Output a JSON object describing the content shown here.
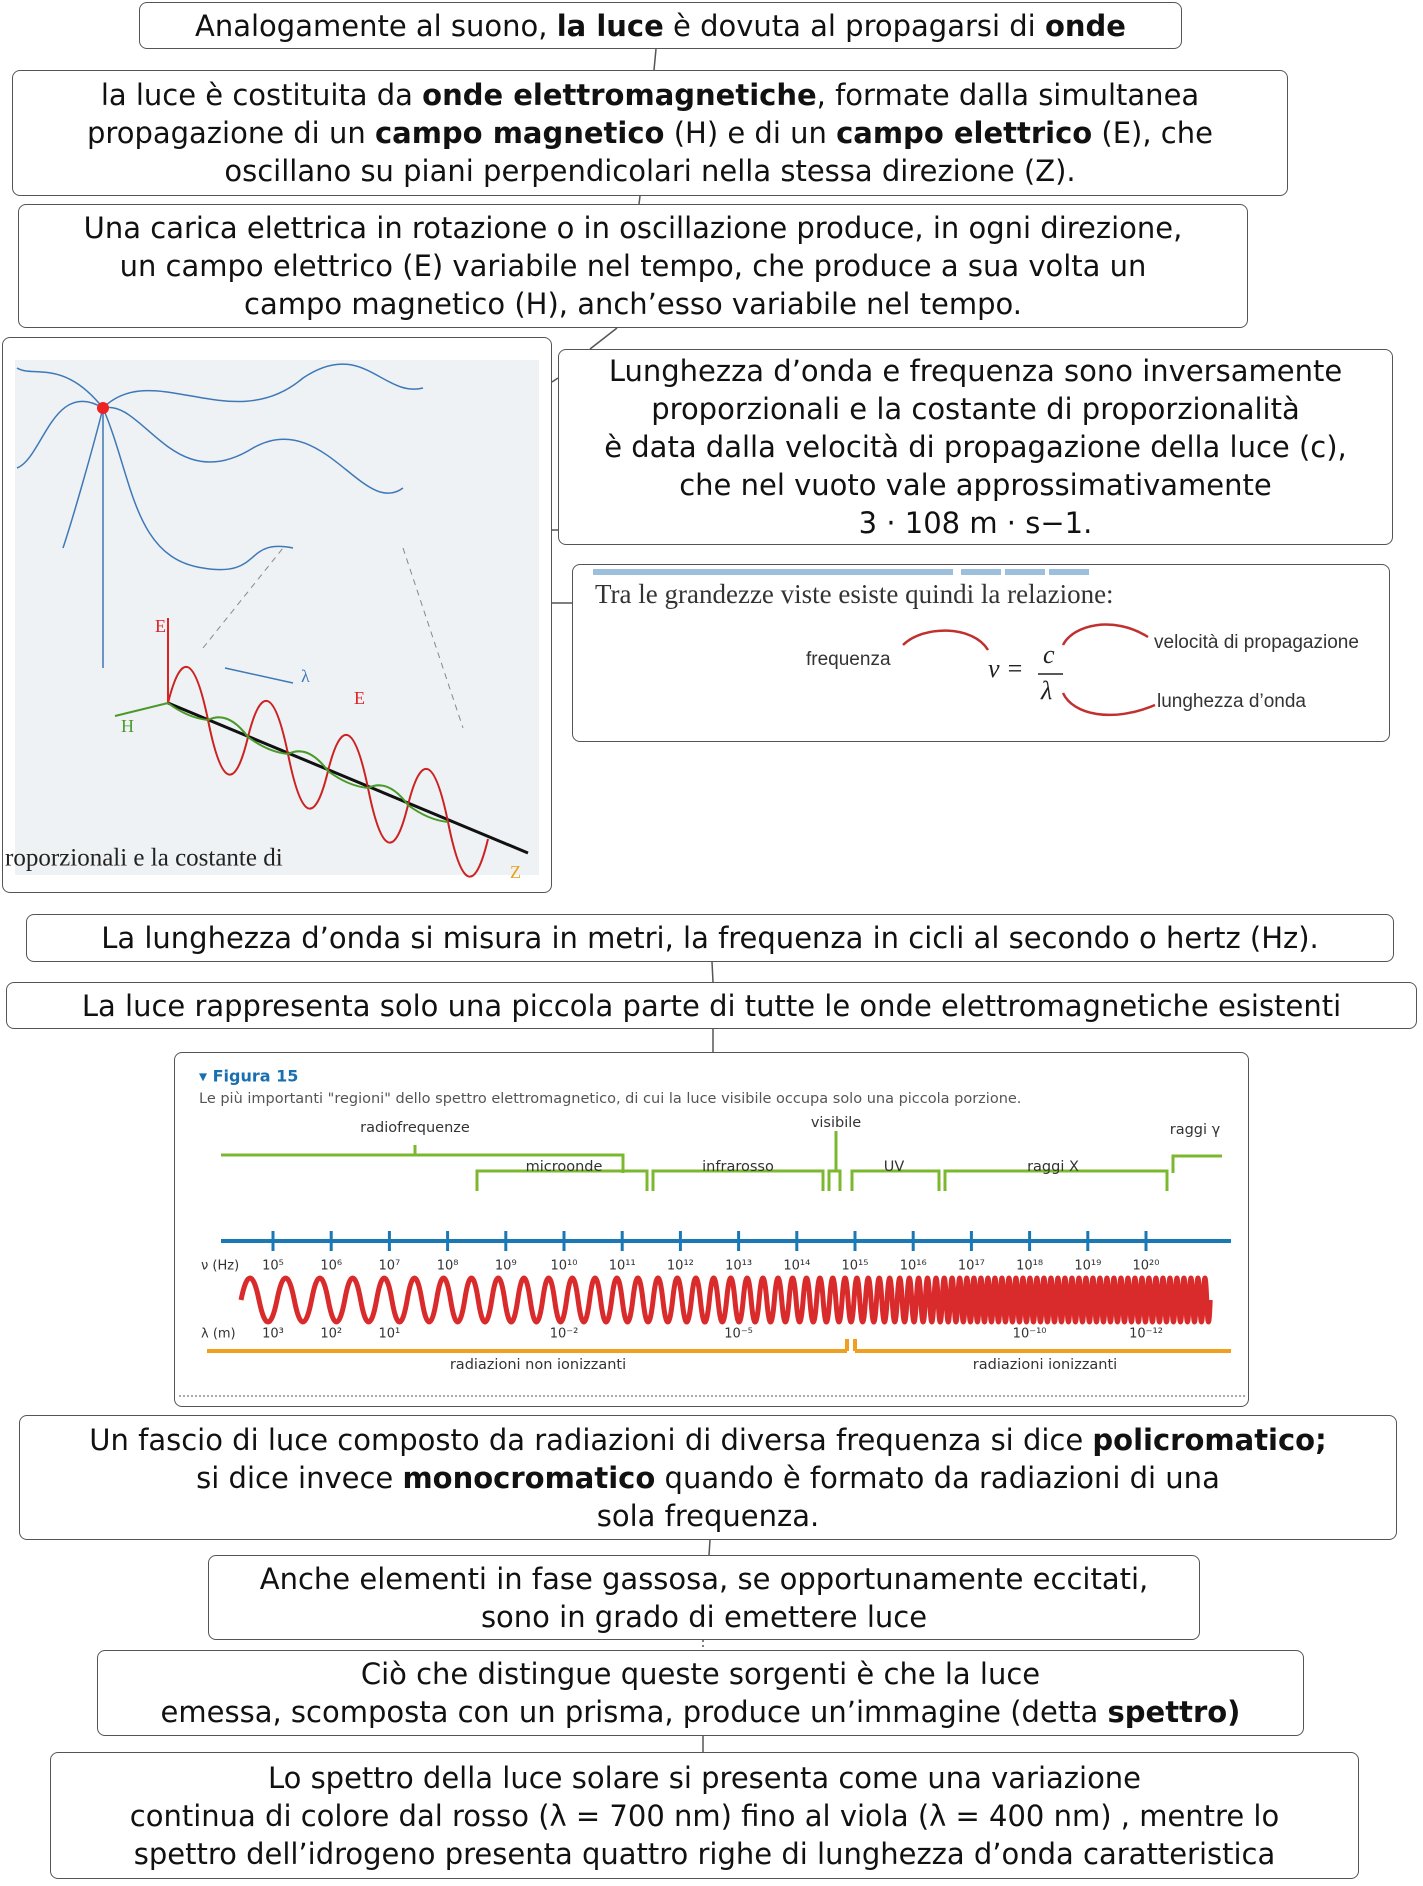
{
  "nodes": [
    {
      "lines": [
        [
          "Analogamente al suono, ",
          {
            "text": "la luce",
            "bold": true
          },
          " è dovuta al propagarsi di ",
          {
            "text": "onde",
            "bold": true
          }
        ]
      ]
    },
    {
      "lines": [
        [
          "la luce è costituita da ",
          {
            "text": "onde elettromagnetiche",
            "bold": true
          },
          ", formate dalla simultanea"
        ],
        [
          "propagazione di un ",
          {
            "text": "campo magnetico",
            "bold": true
          },
          " (H) e di un ",
          {
            "text": "campo elettrico",
            "bold": true
          },
          " (E), che"
        ],
        [
          "oscillano su piani perpendicolari nella stessa direzione (Z)."
        ]
      ]
    },
    {
      "lines": [
        [
          "Una carica elettrica in rotazione o in oscillazione produce, in ogni direzione,"
        ],
        [
          "un campo elettrico (E) variabile nel tempo, che produce a sua volta un"
        ],
        [
          "campo magnetico (H), anch’esso variabile nel tempo."
        ]
      ]
    },
    {
      "lines": [
        [
          "Lunghezza d’onda e frequenza sono inversamente"
        ],
        [
          "proporzionali e la costante di proporzionalità"
        ],
        [
          "è data dalla velocità di propagazione della luce (c),"
        ],
        [
          "che nel vuoto vale approssimativamente"
        ],
        [
          "3 · 108 m · s−1."
        ]
      ]
    },
    {
      "lines": [
        [
          "La lunghezza d’onda si misura in metri, la frequenza in cicli al secondo o hertz (Hz)."
        ]
      ]
    },
    {
      "lines": [
        [
          "La luce rappresenta solo una piccola parte di tutte le onde elettromagnetiche esistenti"
        ]
      ]
    },
    {
      "lines": [
        [
          "Un fascio di luce composto da radiazioni di diversa frequenza si dice ",
          {
            "text": "policromatico;",
            "bold": true
          }
        ],
        [
          "si dice invece ",
          {
            "text": "monocromatico",
            "bold": true
          },
          " quando è formato da radiazioni di una"
        ],
        [
          "sola frequenza."
        ]
      ]
    },
    {
      "lines": [
        [
          "Anche elementi in fase gassosa, se opportunamente eccitati,"
        ],
        [
          "sono in grado di emettere luce"
        ]
      ]
    },
    {
      "lines": [
        [
          "Ciò che distingue queste sorgenti è che la luce"
        ],
        [
          "emessa, scomposta con un prisma, produce un’immagine (detta ",
          {
            "text": "spettro)",
            "bold": true
          }
        ]
      ]
    },
    {
      "lines": [
        [
          "Lo spettro della luce solare si presenta come una variazione"
        ],
        [
          "continua di colore dal rosso (λ = 700 nm) fino al viola (λ = 400 nm) , mentre lo"
        ],
        [
          "spettro dell’idrogeno presenta quattro righe di lunghezza d’onda caratteristica"
        ]
      ]
    }
  ],
  "figure_wave": {
    "labels": [
      "E",
      "H",
      "λ",
      "E",
      "Z"
    ],
    "caption": "roporzionali e la costante di"
  },
  "figure_relation": {
    "heading": "Tra le grandezze viste esiste quindi la relazione:",
    "frequency": "frequenza",
    "nu": "ν =",
    "c": "c",
    "lambda": "λ",
    "speed": "velocità di propagazione",
    "wavelength": "lunghezza d’onda"
  },
  "figure_spectrum": {
    "title": "▾ Figura 15",
    "caption": "Le più importanti \"regioni\" dello spettro elettromagnetico, di cui la luce visibile occupa solo una piccola porzione.",
    "regions": [
      "radiofrequenze",
      "microonde",
      "infrarosso",
      "visibile",
      "UV",
      "raggi X",
      "raggi γ"
    ],
    "freq_label": "ν  (Hz)",
    "freq_ticks": [
      "10⁵",
      "10⁶",
      "10⁷",
      "10⁸",
      "10⁹",
      "10¹⁰",
      "10¹¹",
      "10¹²",
      "10¹³",
      "10¹⁴",
      "10¹⁵",
      "10¹⁶",
      "10¹⁷",
      "10¹⁸",
      "10¹⁹",
      "10²⁰"
    ],
    "wl_label": "λ  (m)",
    "wl_ticks": [
      "10³",
      "10²",
      "10¹",
      "10⁻²",
      "10⁻⁵",
      "10⁻¹⁰",
      "10⁻¹²"
    ],
    "non_ionizing": "radiazioni non ionizzanti",
    "ionizing": "radiazioni ionizzanti"
  }
}
